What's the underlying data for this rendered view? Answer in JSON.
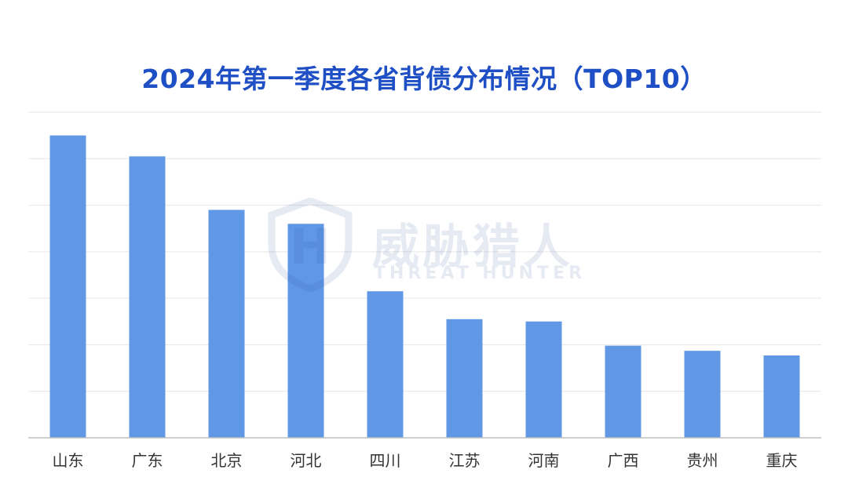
{
  "chart_data": {
    "type": "bar",
    "title": "2024年第一季度各省背债分布情况（TOP10）",
    "categories": [
      "山东",
      "广东",
      "北京",
      "河北",
      "四川",
      "江苏",
      "河南",
      "广西",
      "贵州",
      "重庆"
    ],
    "values": [
      6.5,
      6.05,
      4.9,
      4.6,
      3.15,
      2.55,
      2.5,
      1.98,
      1.87,
      1.77
    ],
    "ylim": [
      0,
      7
    ],
    "grid": true,
    "bar_color": "#6098e6",
    "title_color": "#1f4fc4"
  },
  "watermark": {
    "cn": "威胁猎人",
    "en": "THREAT HUNTER"
  }
}
